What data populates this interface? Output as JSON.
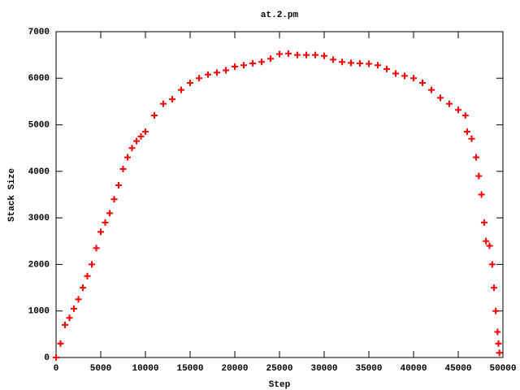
{
  "chart_data": {
    "type": "scatter",
    "title": "at.2.pm",
    "x_label": "Step",
    "y_label": "Stack Size",
    "color": "#ff0000",
    "x": [
      0,
      500,
      1000,
      1500,
      2000,
      2500,
      3000,
      3500,
      4000,
      4500,
      5000,
      5500,
      6000,
      6500,
      7000,
      7500,
      8000,
      8500,
      9000,
      9500,
      10000,
      11000,
      12000,
      13000,
      14000,
      15000,
      16000,
      17000,
      18000,
      19000,
      20000,
      21000,
      22000,
      23000,
      24000,
      25000,
      26000,
      27000,
      28000,
      29000,
      30000,
      31000,
      32000,
      33000,
      34000,
      35000,
      36000,
      37000,
      38000,
      39000,
      40000,
      41000,
      42000,
      43000,
      44000,
      45000,
      45800,
      46000,
      46500,
      47000,
      47300,
      47600,
      47900,
      48100,
      48500,
      48800,
      49000,
      49200,
      49400,
      49500,
      49600
    ],
    "y": [
      0,
      300,
      700,
      850,
      1050,
      1250,
      1500,
      1750,
      2000,
      2350,
      2700,
      2900,
      3100,
      3400,
      3700,
      4050,
      4300,
      4500,
      4650,
      4750,
      4850,
      5200,
      5450,
      5550,
      5750,
      5900,
      6000,
      6080,
      6120,
      6170,
      6250,
      6280,
      6320,
      6350,
      6420,
      6520,
      6530,
      6500,
      6500,
      6500,
      6480,
      6400,
      6350,
      6330,
      6320,
      6310,
      6280,
      6200,
      6100,
      6050,
      6000,
      5900,
      5750,
      5580,
      5450,
      5320,
      5200,
      4850,
      4700,
      4300,
      3900,
      3500,
      2900,
      2500,
      2400,
      2000,
      1500,
      1000,
      550,
      300,
      100
    ],
    "xlim": [
      0,
      50000
    ],
    "xticks": [
      0,
      5000,
      10000,
      15000,
      20000,
      25000,
      30000,
      35000,
      40000,
      45000,
      50000
    ],
    "ylim": [
      0,
      7000
    ],
    "yticks": [
      0,
      1000,
      2000,
      3000,
      4000,
      5000,
      6000,
      7000
    ]
  }
}
